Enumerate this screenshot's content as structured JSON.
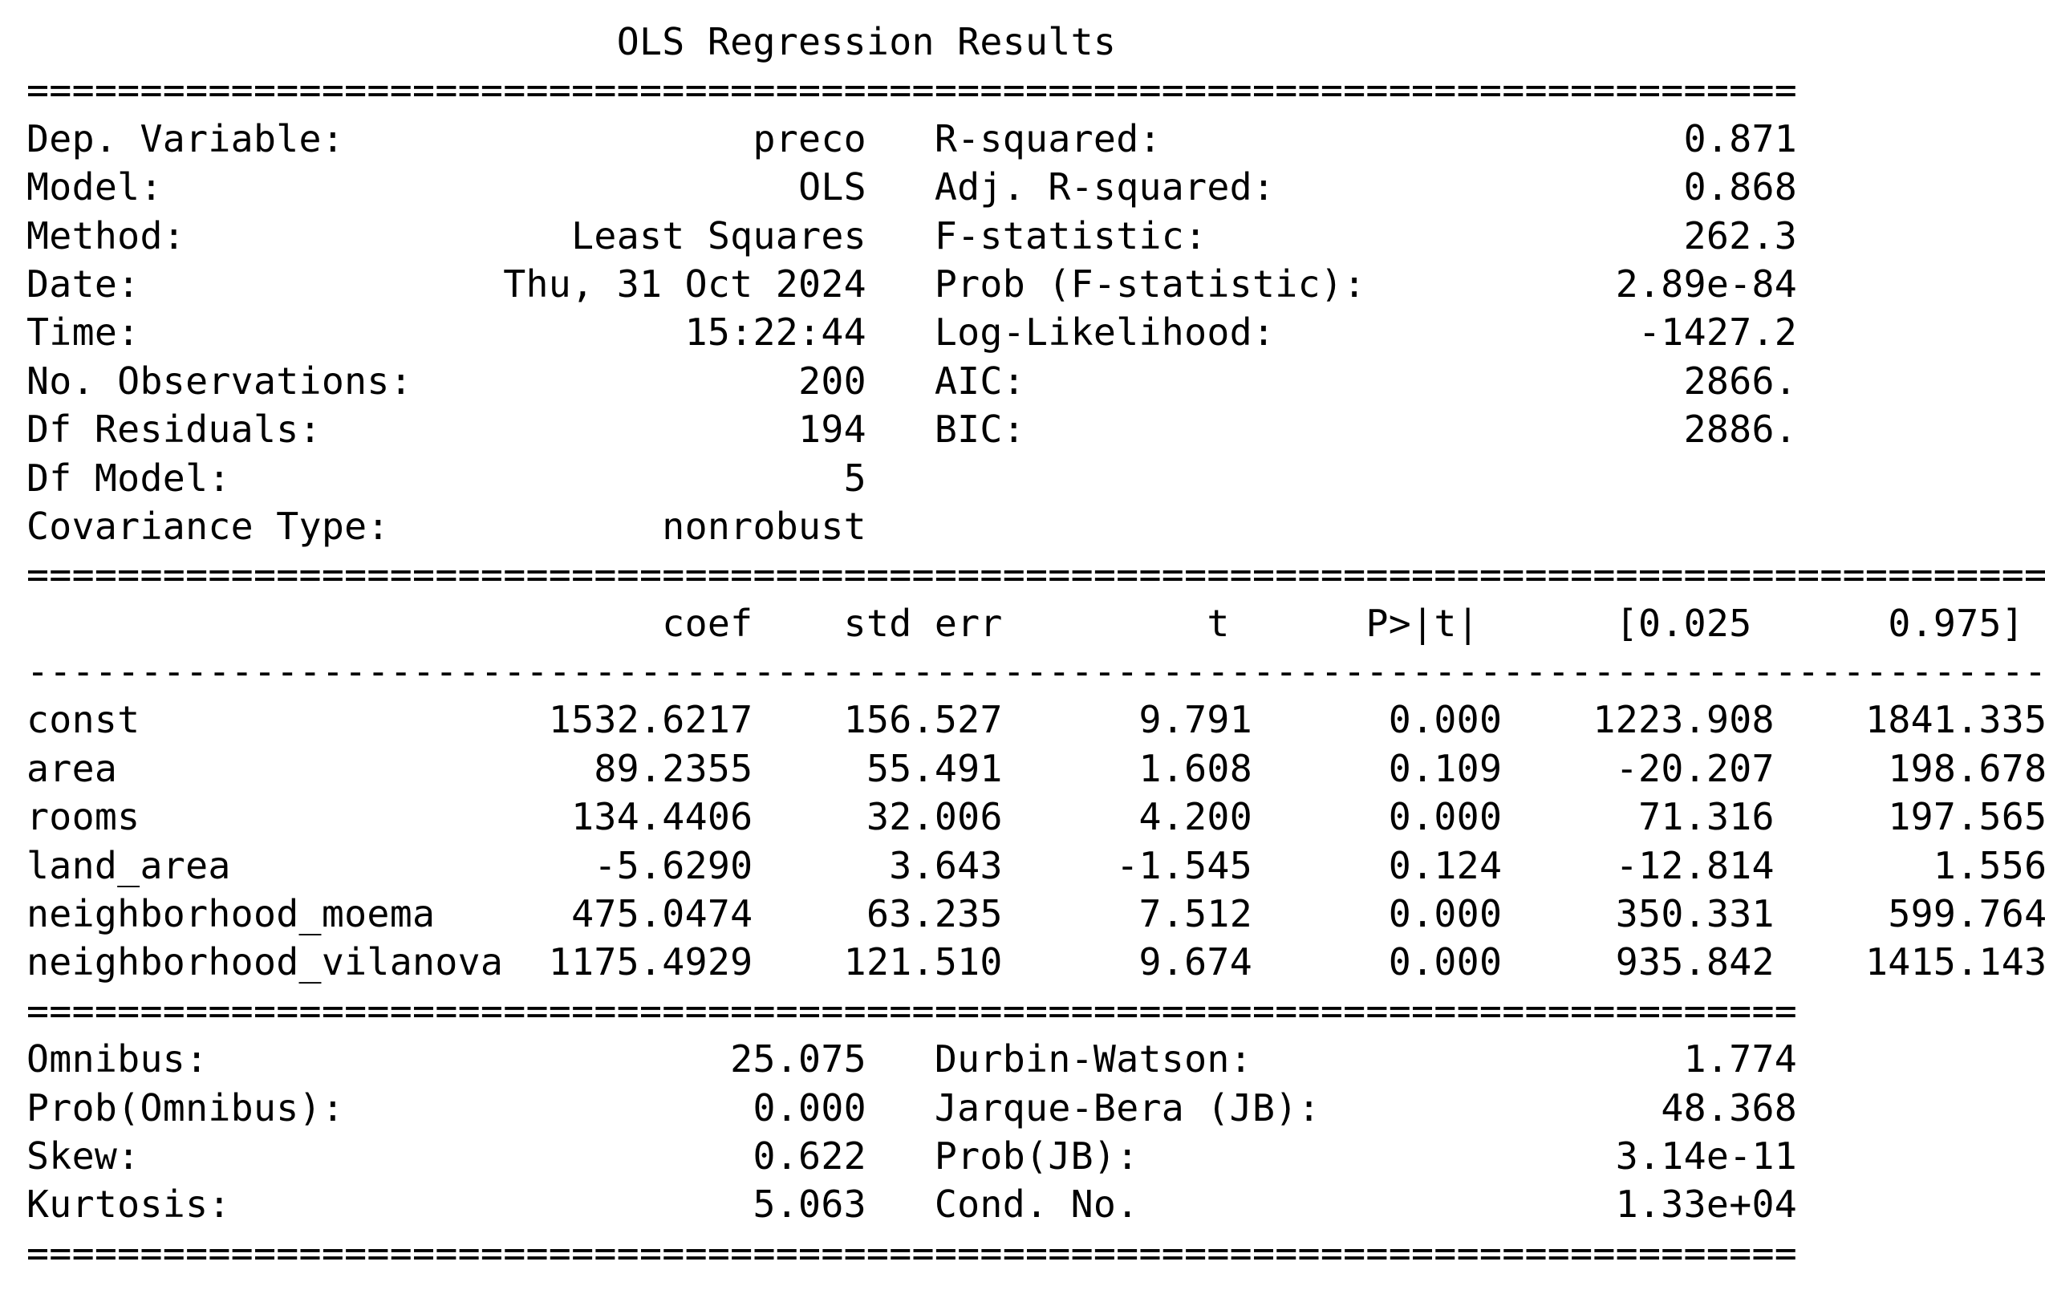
{
  "title": "OLS Regression Results",
  "rule_eq_short": "==============================================================================",
  "rule_eq_long": "=========================================================================================",
  "rule_dash_long": "-----------------------------------------------------------------------------------------",
  "summary_top": {
    "left": [
      {
        "label": "Dep. Variable:",
        "value": "preco"
      },
      {
        "label": "Model:",
        "value": "OLS"
      },
      {
        "label": "Method:",
        "value": "Least Squares"
      },
      {
        "label": "Date:",
        "value": "Thu, 31 Oct 2024"
      },
      {
        "label": "Time:",
        "value": "15:22:44"
      },
      {
        "label": "No. Observations:",
        "value": "200"
      },
      {
        "label": "Df Residuals:",
        "value": "194"
      },
      {
        "label": "Df Model:",
        "value": "5"
      },
      {
        "label": "Covariance Type:",
        "value": "nonrobust"
      }
    ],
    "right": [
      {
        "label": "R-squared:",
        "value": "0.871"
      },
      {
        "label": "Adj. R-squared:",
        "value": "0.868"
      },
      {
        "label": "F-statistic:",
        "value": "262.3"
      },
      {
        "label": "Prob (F-statistic):",
        "value": "2.89e-84"
      },
      {
        "label": "Log-Likelihood:",
        "value": "-1427.2"
      },
      {
        "label": "AIC:",
        "value": "2866."
      },
      {
        "label": "BIC:",
        "value": "2886."
      }
    ]
  },
  "coef_table": {
    "headers": [
      "coef",
      "std err",
      "t",
      "P>|t|",
      "[0.025",
      "0.975]"
    ],
    "rows": [
      {
        "name": "const",
        "values": [
          "1532.6217",
          "156.527",
          "9.791",
          "0.000",
          "1223.908",
          "1841.335"
        ]
      },
      {
        "name": "area",
        "values": [
          "89.2355",
          "55.491",
          "1.608",
          "0.109",
          "-20.207",
          "198.678"
        ]
      },
      {
        "name": "rooms",
        "values": [
          "134.4406",
          "32.006",
          "4.200",
          "0.000",
          "71.316",
          "197.565"
        ]
      },
      {
        "name": "land_area",
        "values": [
          "-5.6290",
          "3.643",
          "-1.545",
          "0.124",
          "-12.814",
          "1.556"
        ]
      },
      {
        "name": "neighborhood_moema",
        "values": [
          "475.0474",
          "63.235",
          "7.512",
          "0.000",
          "350.331",
          "599.764"
        ]
      },
      {
        "name": "neighborhood_vilanova",
        "values": [
          "1175.4929",
          "121.510",
          "9.674",
          "0.000",
          "935.842",
          "1415.143"
        ]
      }
    ]
  },
  "summary_bottom": {
    "left": [
      {
        "label": "Omnibus:",
        "value": "25.075"
      },
      {
        "label": "Prob(Omnibus):",
        "value": "0.000"
      },
      {
        "label": "Skew:",
        "value": "0.622"
      },
      {
        "label": "Kurtosis:",
        "value": "5.063"
      }
    ],
    "right": [
      {
        "label": "Durbin-Watson:",
        "value": "1.774"
      },
      {
        "label": "Jarque-Bera (JB):",
        "value": "48.368"
      },
      {
        "label": "Prob(JB):",
        "value": "3.14e-11"
      },
      {
        "label": "Cond. No.",
        "value": "1.33e+04"
      }
    ]
  }
}
